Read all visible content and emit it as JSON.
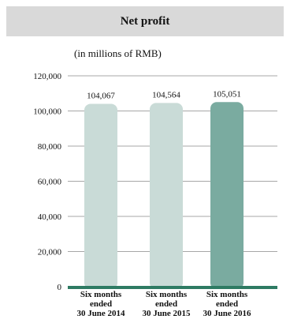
{
  "header": {
    "title": "Net profit"
  },
  "unit_label": "(in millions of RMB)",
  "colors": {
    "bar_light": "#c9dbd7",
    "bar_dark": "#7aaba0",
    "baseline": "#2e7b63",
    "grid": "#8a8a8a"
  },
  "chart_data": {
    "type": "bar",
    "title": "Net profit",
    "categories": [
      [
        "Six months",
        "ended",
        "30 June 2014"
      ],
      [
        "Six months",
        "ended",
        "30 June 2015"
      ],
      [
        "Six months",
        "ended",
        "30 June 2016"
      ]
    ],
    "values": [
      104067,
      104564,
      105051
    ],
    "value_labels": [
      "104,067",
      "104,564",
      "105,051"
    ],
    "ylim": [
      0,
      120000
    ],
    "yticks": [
      0,
      20000,
      40000,
      60000,
      80000,
      100000,
      120000
    ],
    "ytick_labels": [
      "0",
      "20,000",
      "40,000",
      "60,000",
      "80,000",
      "100,000",
      "120,000"
    ],
    "grid": true,
    "xlabel": "",
    "ylabel": ""
  }
}
